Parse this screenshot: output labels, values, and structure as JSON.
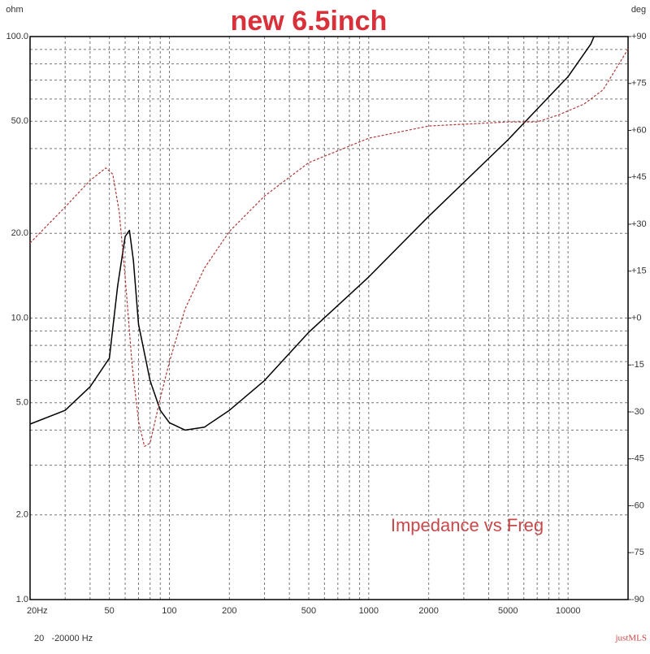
{
  "chart_data": {
    "type": "line",
    "title": "new 6.5inch",
    "annotation": "Impedance vs Freg",
    "ylabel": "ohm",
    "y2label": "deg",
    "footer_range": "20   -20000 Hz",
    "footer_brand": "justMLS",
    "xscale": "log",
    "yscale": "log",
    "xlim": [
      20,
      20000
    ],
    "xticks": [
      {
        "value": 20,
        "label": "20Hz"
      },
      50,
      100,
      200,
      500,
      1000,
      2000,
      5000,
      10000
    ],
    "xminor": [
      30,
      40,
      60,
      70,
      80,
      90,
      300,
      400,
      600,
      700,
      800,
      900,
      3000,
      4000,
      6000,
      7000,
      8000,
      9000
    ],
    "ylim": [
      1,
      100
    ],
    "yticks": [
      {
        "value": 1,
        "label": "1.0"
      },
      {
        "value": 2,
        "label": "2.0"
      },
      {
        "value": 5,
        "label": "5.0"
      },
      {
        "value": 10,
        "label": "10.0"
      },
      {
        "value": 20,
        "label": "20.0"
      },
      {
        "value": 50,
        "label": "50.0"
      },
      {
        "value": 100,
        "label": "100.0"
      }
    ],
    "yminor": [
      3,
      4,
      6,
      7,
      8,
      9,
      30,
      40,
      60,
      70,
      80,
      90
    ],
    "y2lim": [
      -90,
      90
    ],
    "y2ticks": [
      {
        "value": -90,
        "label": "-90"
      },
      {
        "value": -75,
        "label": "-75"
      },
      {
        "value": -60,
        "label": "-60"
      },
      {
        "value": -45,
        "label": "-45"
      },
      {
        "value": -30,
        "label": "-30"
      },
      {
        "value": -15,
        "label": "-15"
      },
      {
        "value": 0,
        "label": "+0"
      },
      {
        "value": 15,
        "label": "+15"
      },
      {
        "value": 30,
        "label": "+30"
      },
      {
        "value": 45,
        "label": "+45"
      },
      {
        "value": 60,
        "label": "+60"
      },
      {
        "value": 75,
        "label": "+75"
      },
      {
        "value": 90,
        "label": "+90"
      }
    ],
    "grid": true,
    "series": [
      {
        "color": "#000000",
        "dash": false,
        "x": [
          20,
          30,
          40,
          50,
          55,
          60,
          63,
          66,
          70,
          80,
          90,
          100,
          120,
          150,
          200,
          300,
          500,
          1000,
          2000,
          5000,
          10000,
          13000,
          13500
        ],
        "values": [
          4.2,
          4.7,
          5.7,
          7.2,
          13,
          19.5,
          20.5,
          16,
          9.5,
          6,
          4.7,
          4.25,
          4.0,
          4.1,
          4.7,
          6.0,
          8.9,
          14,
          23,
          43,
          72,
          94,
          100
        ]
      },
      {
        "color": "#b03a3a",
        "dash": true,
        "axis": "y2",
        "x": [
          20,
          30,
          40,
          48,
          52,
          56,
          60,
          65,
          70,
          75,
          80,
          90,
          100,
          120,
          150,
          200,
          300,
          500,
          1000,
          2000,
          5000,
          7000,
          9000,
          12000,
          15000,
          20000
        ],
        "values": [
          24,
          35.5,
          44,
          48,
          46,
          34,
          13,
          -15,
          -33,
          -41,
          -40,
          -25.6,
          -14,
          3,
          16,
          27.7,
          39,
          49.7,
          57.5,
          61.4,
          62.7,
          62.7,
          65,
          68.4,
          73,
          86
        ]
      }
    ]
  }
}
